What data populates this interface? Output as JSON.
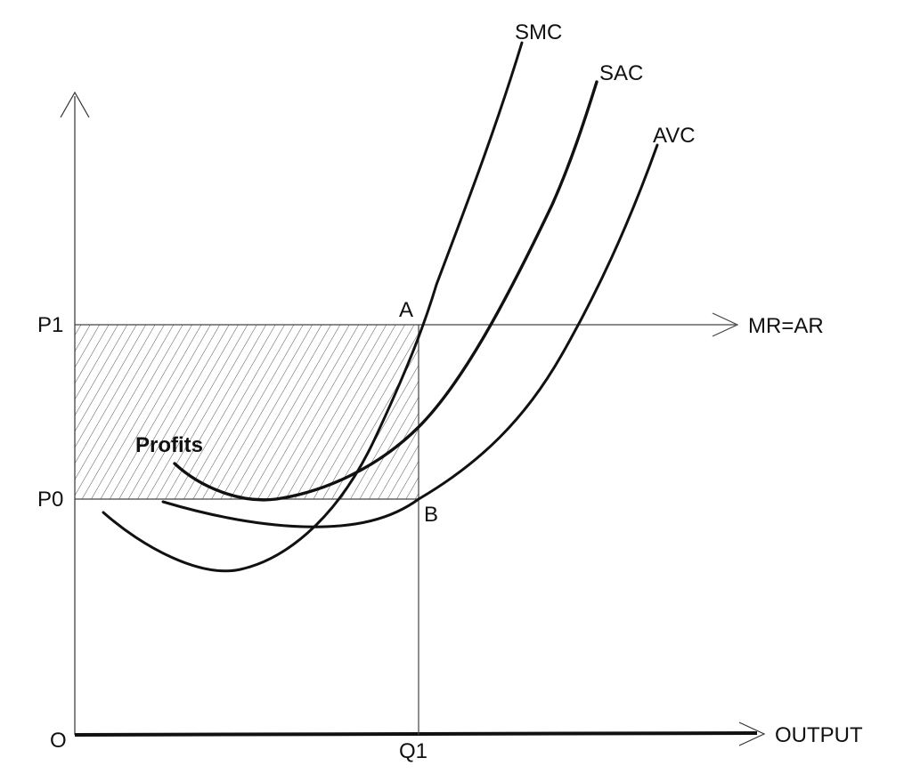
{
  "labels": {
    "origin": "O",
    "x_axis": "OUTPUT",
    "quantity": "Q1",
    "price_high": "P1",
    "price_low": "P0",
    "revenue_line": "MR=AR",
    "point_a": "A",
    "point_b": "B",
    "profit_area": "Profits",
    "curve_smc": "SMC",
    "curve_sac": "SAC",
    "curve_avc": "AVC"
  },
  "colors": {
    "line": "#111111",
    "hatch": "#555555",
    "background": "#ffffff"
  }
}
